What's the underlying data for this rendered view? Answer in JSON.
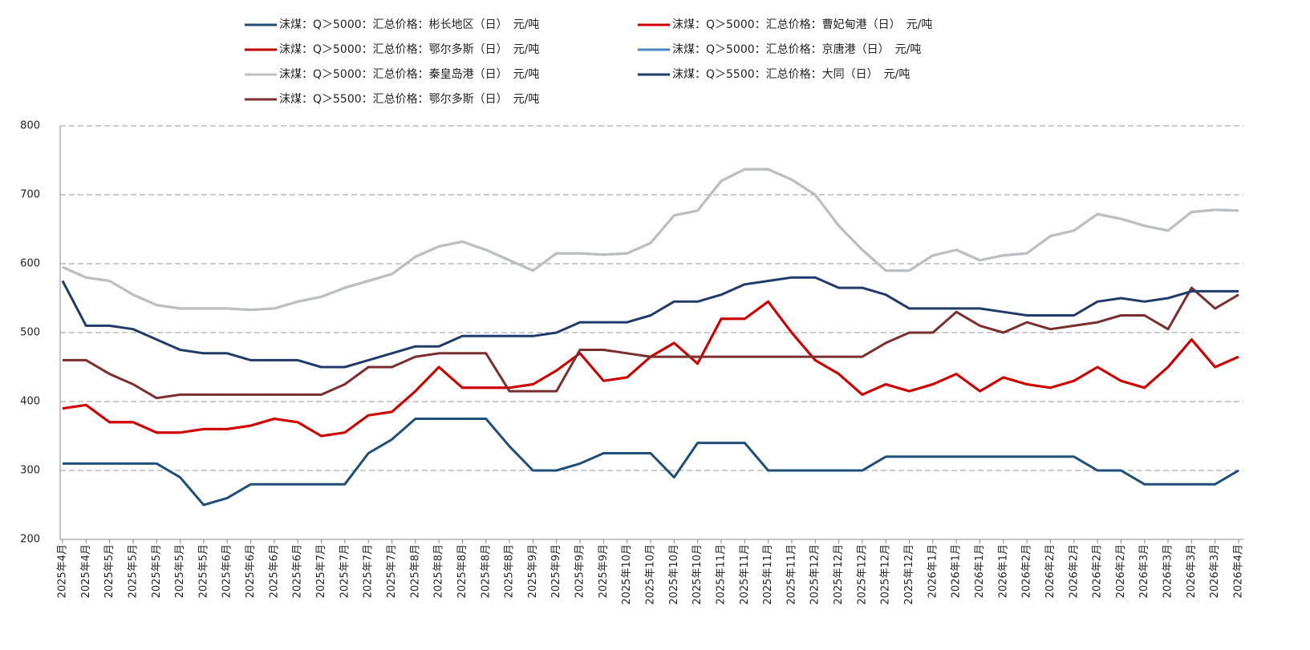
{
  "chart_data": {
    "type": "line",
    "categories": [
      "2025年4月",
      "2025年4月",
      "2025年5月",
      "2025年5月",
      "2025年5月",
      "2025年5月",
      "2025年5月",
      "2025年6月",
      "2025年6月",
      "2025年6月",
      "2025年6月",
      "2025年7月",
      "2025年7月",
      "2025年7月",
      "2025年7月",
      "2025年8月",
      "2025年8月",
      "2025年8月",
      "2025年8月",
      "2025年8月",
      "2025年9月",
      "2025年9月",
      "2025年9月",
      "2025年9月",
      "2025年10月",
      "2025年10月",
      "2025年10月",
      "2025年10月",
      "2025年11月",
      "2025年11月",
      "2025年11月",
      "2025年11月",
      "2025年12月",
      "2025年12月",
      "2025年12月",
      "2025年12月",
      "2025年12月",
      "2026年1月",
      "2026年1月",
      "2026年1月",
      "2026年1月",
      "2026年2月",
      "2026年2月",
      "2026年2月",
      "2026年2月",
      "2026年2月",
      "2026年3月",
      "2026年3月",
      "2026年3月",
      "2026年3月",
      "2026年4月"
    ],
    "series": [
      {
        "name": "沫煤：Q＞5000：汇总价格：彬长地区（日）　元/吨",
        "color": "#1f4e79",
        "values": [
          310,
          310,
          310,
          310,
          310,
          290,
          250,
          260,
          280,
          280,
          280,
          280,
          280,
          325,
          345,
          375,
          375,
          375,
          375,
          335,
          300,
          300,
          310,
          325,
          325,
          325,
          290,
          340,
          340,
          340,
          300,
          300,
          300,
          300,
          300,
          320,
          320,
          320,
          320,
          320,
          320,
          320,
          320,
          320,
          300,
          300,
          280,
          280,
          280,
          280,
          300
        ]
      },
      {
        "name": "沫煤：Q＞5000：汇总价格：曹妃甸港（日）　元/吨",
        "color": "#d00000",
        "values": [
          390,
          395,
          370,
          370,
          355,
          355,
          360,
          360,
          365,
          375,
          370,
          350,
          355,
          380,
          385,
          415,
          450,
          420,
          420,
          420,
          425,
          445,
          470,
          430,
          435,
          465,
          485,
          455,
          520,
          520,
          545,
          500,
          460,
          440,
          410,
          425,
          415,
          425,
          440,
          415,
          435,
          425,
          420,
          430,
          450,
          430,
          420,
          450,
          490,
          450,
          465
        ]
      },
      {
        "name": "沫煤：Q＞5000：汇总价格：鄂尔多斯（日）　元/吨",
        "color": "#c00000",
        "values": [
          390,
          395,
          370,
          370,
          355,
          355,
          360,
          360,
          365,
          375,
          370,
          350,
          355,
          380,
          385,
          415,
          450,
          420,
          420,
          420,
          425,
          445,
          470,
          430,
          435,
          465,
          485,
          455,
          520,
          520,
          545,
          500,
          460,
          440,
          410,
          425,
          415,
          425,
          440,
          415,
          435,
          425,
          420,
          430,
          450,
          430,
          420,
          450,
          490,
          450,
          465
        ]
      },
      {
        "name": "沫煤：Q＞5000：汇总价格：京唐港（日）　元/吨",
        "color": "#4a86c0",
        "values": [
          595,
          580,
          575,
          555,
          540,
          535,
          535,
          535,
          533,
          535,
          545,
          552,
          565,
          575,
          585,
          610,
          625,
          632,
          620,
          605,
          590,
          615,
          615,
          613,
          615,
          630,
          670,
          677,
          720,
          737,
          737,
          722,
          700,
          655,
          620,
          590,
          590,
          612,
          620,
          605,
          612,
          615,
          640,
          648,
          672,
          665,
          655,
          648,
          675,
          678,
          677
        ]
      },
      {
        "name": "沫煤：Q＞5000：汇总价格：秦皇岛港（日）　元/吨",
        "color": "#bfbfbf",
        "values": [
          595,
          580,
          575,
          555,
          540,
          535,
          535,
          535,
          533,
          535,
          545,
          552,
          565,
          575,
          585,
          610,
          625,
          632,
          620,
          605,
          590,
          615,
          615,
          613,
          615,
          630,
          670,
          677,
          720,
          737,
          737,
          722,
          700,
          655,
          620,
          590,
          590,
          612,
          620,
          605,
          612,
          615,
          640,
          648,
          672,
          665,
          655,
          648,
          675,
          678,
          677
        ]
      },
      {
        "name": "沫煤：Q＞5500：汇总价格：大同（日）　元/吨",
        "color": "#203a6b",
        "values": [
          575,
          510,
          510,
          505,
          490,
          475,
          470,
          470,
          460,
          460,
          460,
          450,
          450,
          460,
          470,
          480,
          480,
          495,
          495,
          495,
          495,
          500,
          515,
          515,
          515,
          525,
          545,
          545,
          555,
          570,
          575,
          580,
          580,
          565,
          565,
          555,
          535,
          535,
          535,
          535,
          530,
          525,
          525,
          525,
          545,
          550,
          545,
          550,
          560,
          560,
          560
        ]
      },
      {
        "name": "沫煤：Q＞5500：汇总价格：鄂尔多斯（日）　元/吨",
        "color": "#7b2e2e",
        "values": [
          460,
          460,
          440,
          425,
          405,
          410,
          410,
          410,
          410,
          410,
          410,
          410,
          425,
          450,
          450,
          465,
          470,
          470,
          470,
          415,
          415,
          415,
          475,
          475,
          470,
          465,
          465,
          465,
          465,
          465,
          465,
          465,
          465,
          465,
          465,
          485,
          500,
          500,
          530,
          510,
          500,
          515,
          505,
          510,
          515,
          525,
          525,
          505,
          565,
          535,
          555
        ]
      }
    ],
    "ylim": [
      200,
      800
    ],
    "yticks": [
      200,
      300,
      400,
      500,
      600,
      700,
      800
    ],
    "grid": true
  }
}
